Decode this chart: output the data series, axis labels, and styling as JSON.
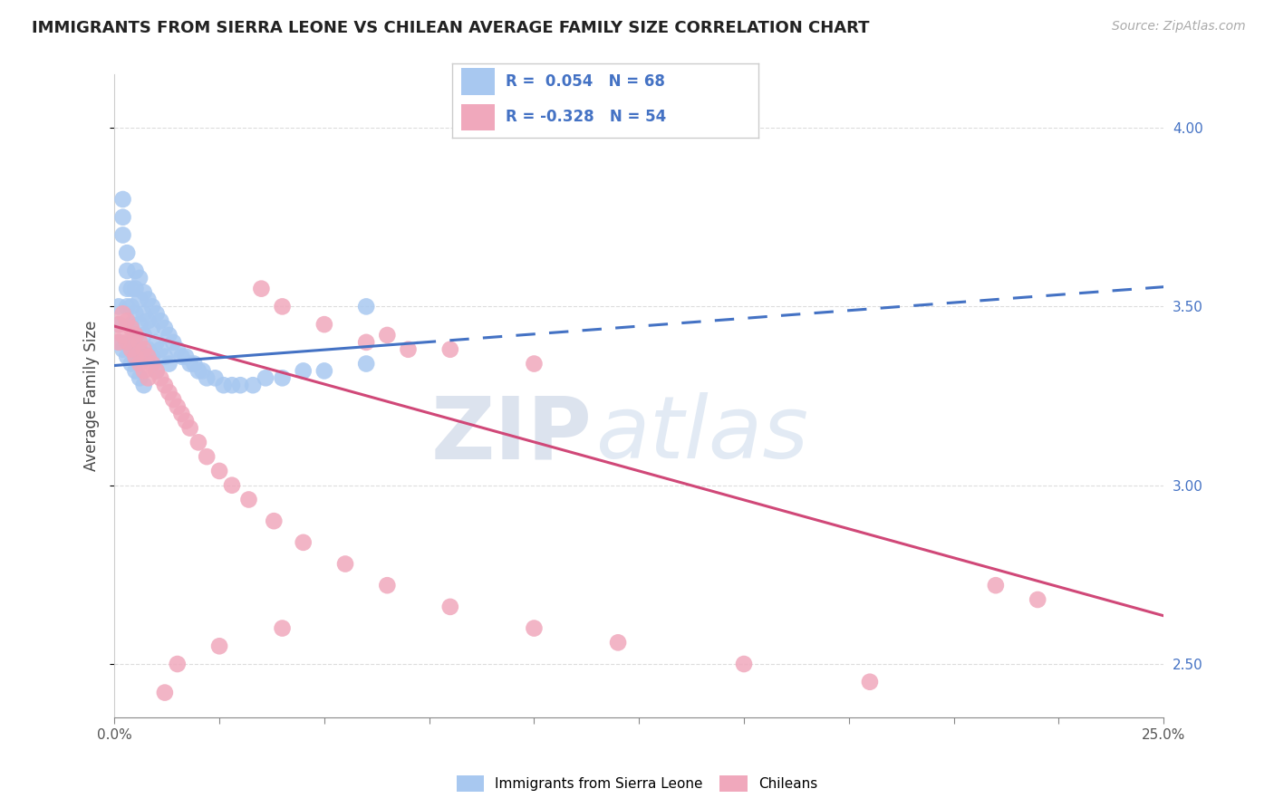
{
  "title": "IMMIGRANTS FROM SIERRA LEONE VS CHILEAN AVERAGE FAMILY SIZE CORRELATION CHART",
  "source": "Source: ZipAtlas.com",
  "ylabel": "Average Family Size",
  "series1_label": "Immigrants from Sierra Leone",
  "series2_label": "Chileans",
  "series1_R": "0.054",
  "series1_N": "68",
  "series2_R": "-0.328",
  "series2_N": "54",
  "series1_color": "#a8c8f0",
  "series2_color": "#f0a8bc",
  "line1_color": "#4472c4",
  "line2_color": "#d04878",
  "xlim": [
    0.0,
    0.25
  ],
  "ylim": [
    2.35,
    4.15
  ],
  "yticks": [
    2.5,
    3.0,
    3.5,
    4.0
  ],
  "background_color": "#ffffff",
  "watermark_zip": "ZIP",
  "watermark_atlas": "atlas",
  "grid_color": "#dddddd",
  "title_fontsize": 13,
  "axis_label_fontsize": 12,
  "tick_fontsize": 11,
  "legend_fontsize": 11,
  "source_fontsize": 10,
  "marker_size": 180,
  "line_width": 2.2,
  "line1_x0": 0.0,
  "line1_solid_end": 0.072,
  "line1_x1": 0.25,
  "line1_y0": 3.335,
  "line1_y1": 3.555,
  "line2_x0": 0.0,
  "line2_x1": 0.25,
  "line2_y0": 3.445,
  "line2_y1": 2.635,
  "s1_x": [
    0.001,
    0.001,
    0.002,
    0.002,
    0.002,
    0.003,
    0.003,
    0.003,
    0.003,
    0.004,
    0.004,
    0.004,
    0.004,
    0.005,
    0.005,
    0.005,
    0.005,
    0.005,
    0.006,
    0.006,
    0.006,
    0.006,
    0.007,
    0.007,
    0.007,
    0.007,
    0.008,
    0.008,
    0.008,
    0.009,
    0.009,
    0.009,
    0.01,
    0.01,
    0.01,
    0.011,
    0.011,
    0.012,
    0.012,
    0.013,
    0.013,
    0.014,
    0.015,
    0.016,
    0.017,
    0.018,
    0.019,
    0.02,
    0.021,
    0.022,
    0.024,
    0.026,
    0.028,
    0.03,
    0.033,
    0.036,
    0.04,
    0.045,
    0.05,
    0.06,
    0.001,
    0.002,
    0.003,
    0.004,
    0.005,
    0.006,
    0.007,
    0.06
  ],
  "s1_y": [
    3.5,
    3.45,
    3.8,
    3.75,
    3.7,
    3.65,
    3.6,
    3.55,
    3.5,
    3.55,
    3.5,
    3.45,
    3.4,
    3.6,
    3.55,
    3.48,
    3.42,
    3.35,
    3.58,
    3.52,
    3.45,
    3.38,
    3.54,
    3.48,
    3.42,
    3.36,
    3.52,
    3.46,
    3.38,
    3.5,
    3.44,
    3.36,
    3.48,
    3.4,
    3.32,
    3.46,
    3.38,
    3.44,
    3.36,
    3.42,
    3.34,
    3.4,
    3.38,
    3.36,
    3.36,
    3.34,
    3.34,
    3.32,
    3.32,
    3.3,
    3.3,
    3.28,
    3.28,
    3.28,
    3.28,
    3.3,
    3.3,
    3.32,
    3.32,
    3.34,
    3.4,
    3.38,
    3.36,
    3.34,
    3.32,
    3.3,
    3.28,
    3.5
  ],
  "s2_x": [
    0.001,
    0.001,
    0.002,
    0.002,
    0.003,
    0.003,
    0.004,
    0.004,
    0.005,
    0.005,
    0.006,
    0.006,
    0.007,
    0.007,
    0.008,
    0.008,
    0.009,
    0.01,
    0.011,
    0.012,
    0.013,
    0.014,
    0.015,
    0.016,
    0.017,
    0.018,
    0.02,
    0.022,
    0.025,
    0.028,
    0.032,
    0.038,
    0.045,
    0.055,
    0.065,
    0.08,
    0.1,
    0.12,
    0.15,
    0.18,
    0.21,
    0.22,
    0.065,
    0.08,
    0.1,
    0.035,
    0.04,
    0.05,
    0.06,
    0.07,
    0.04,
    0.025,
    0.015,
    0.012
  ],
  "s2_y": [
    3.45,
    3.4,
    3.48,
    3.42,
    3.46,
    3.4,
    3.44,
    3.38,
    3.42,
    3.36,
    3.4,
    3.34,
    3.38,
    3.32,
    3.36,
    3.3,
    3.34,
    3.32,
    3.3,
    3.28,
    3.26,
    3.24,
    3.22,
    3.2,
    3.18,
    3.16,
    3.12,
    3.08,
    3.04,
    3.0,
    2.96,
    2.9,
    2.84,
    2.78,
    2.72,
    2.66,
    2.6,
    2.56,
    2.5,
    2.45,
    2.72,
    2.68,
    3.42,
    3.38,
    3.34,
    3.55,
    3.5,
    3.45,
    3.4,
    3.38,
    2.6,
    2.55,
    2.5,
    2.42
  ]
}
